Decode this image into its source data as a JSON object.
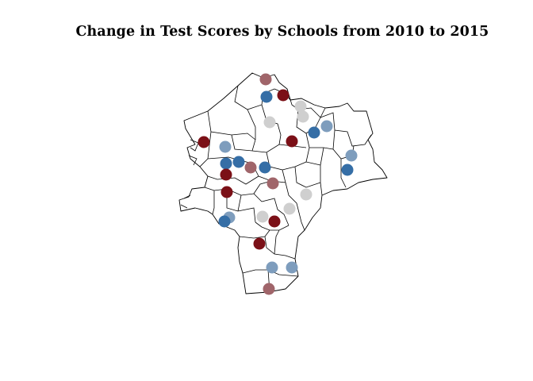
{
  "title": "Change in Test Scores by Schools from 2010 to 2015",
  "map": {
    "colors": {
      "strong_decrease": "#7b1017",
      "decrease": "#a0656a",
      "no_change": "#cfcfcf",
      "increase": "#7e9dbd",
      "strong_increase": "#356ea6"
    }
  }
}
